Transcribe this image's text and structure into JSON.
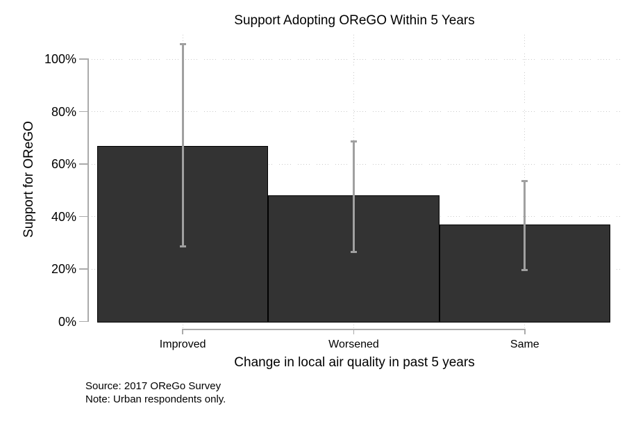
{
  "title": "Support Adopting OReGO Within 5 Years",
  "y_axis": {
    "title": "Support for OReGO",
    "tick_values": [
      0,
      20,
      40,
      60,
      80,
      100
    ],
    "tick_labels": [
      "0%",
      "20%",
      "40%",
      "60%",
      "80%",
      "100%"
    ]
  },
  "x_axis": {
    "title": "Change in local air quality in past 5 years"
  },
  "notes": {
    "source_line": "Source: 2017 OReGo Survey",
    "note_line": "Note: Urban respondents only."
  },
  "colors": {
    "background": "#ffffff",
    "bar_fill": "#333333",
    "bar_border": "#000000",
    "error_bar": "#a0a0a0",
    "axis": "#aaaaaa",
    "grid_dot": "#c9c9c9",
    "text": "#000000"
  },
  "chart_data": {
    "type": "bar",
    "title": "Support Adopting OReGO Within 5 Years",
    "xlabel": "Change in local air quality in past 5 years",
    "ylabel": "Support for OReGO",
    "categories": [
      "Improved",
      "Worsened",
      "Same"
    ],
    "values": [
      67,
      48,
      37
    ],
    "error_bars": [
      {
        "low": 29,
        "high": 106
      },
      {
        "low": 27,
        "high": 69
      },
      {
        "low": 20,
        "high": 54
      }
    ],
    "ylim": [
      0,
      100
    ],
    "ytick_step": 20,
    "grid": "dotted horizontal gridlines at y ticks, dotted vertical gridlines at category centers",
    "legend": "none",
    "annotations": [
      "Source: 2017 OReGo Survey",
      "Note: Urban respondents only."
    ]
  }
}
